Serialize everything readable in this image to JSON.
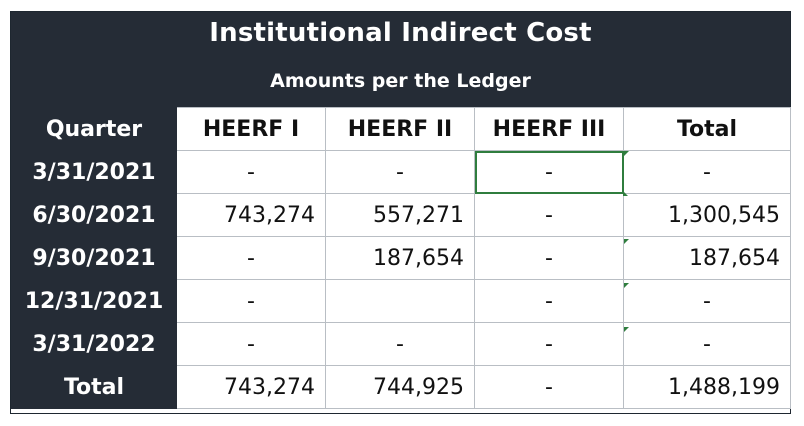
{
  "title": "Institutional Indirect Cost",
  "subtitle": "Amounts per the Ledger",
  "columns": [
    "Quarter",
    "HEERF I",
    "HEERF II",
    "HEERF III",
    "Total"
  ],
  "rows": [
    {
      "quarter": "3/31/2021",
      "heerf1": "-",
      "heerf2": "-",
      "heerf3": "-",
      "total": "-"
    },
    {
      "quarter": "6/30/2021",
      "heerf1": "743,274",
      "heerf2": "557,271",
      "heerf3": "-",
      "total": "1,300,545"
    },
    {
      "quarter": "9/30/2021",
      "heerf1": "-",
      "heerf2": "187,654",
      "heerf3": "-",
      "total": "187,654"
    },
    {
      "quarter": "12/31/2021",
      "heerf1": "-",
      "heerf2": "",
      "heerf3": "-",
      "total": "-"
    },
    {
      "quarter": "3/31/2022",
      "heerf1": "-",
      "heerf2": "-",
      "heerf3": "-",
      "total": "-"
    }
  ],
  "totals": {
    "label": "Total",
    "heerf1": "743,274",
    "heerf2": "744,925",
    "heerf3": "-",
    "total": "1,488,199"
  },
  "colors": {
    "header_bg": "#252c36",
    "header_text": "#ffffff",
    "selection": "#2f7d3e",
    "grid_line": "#b9bec4"
  }
}
